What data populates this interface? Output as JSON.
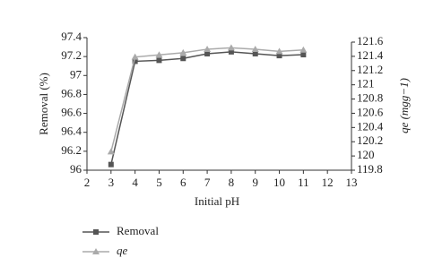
{
  "chart_data": {
    "type": "line",
    "x": [
      3,
      4,
      5,
      6,
      7,
      8,
      9,
      10,
      11
    ],
    "xlabel": "Initial pH",
    "ylabel": "Removal (%)",
    "y2label": "qe (mgg−1)",
    "xlim": [
      2,
      13
    ],
    "xticks": [
      2,
      3,
      4,
      5,
      6,
      7,
      8,
      9,
      10,
      11,
      12,
      13
    ],
    "ylim": [
      96,
      97.4
    ],
    "yticks": [
      96,
      96.2,
      96.4,
      96.6,
      96.8,
      97,
      97.2,
      97.4
    ],
    "y2lim": [
      119.8,
      121.6
    ],
    "y2ticks": [
      119.8,
      120,
      120.2,
      120.4,
      120.6,
      120.8,
      121,
      121.2,
      121.4,
      121.6
    ],
    "series": [
      {
        "name": "Removal",
        "color": "#555555",
        "marker": "square",
        "values": [
          96.06,
          97.15,
          97.16,
          97.18,
          97.23,
          97.25,
          97.23,
          97.21,
          97.22
        ]
      },
      {
        "name": "qe",
        "color": "#aaaaaa",
        "marker": "triangle",
        "axis": "y2",
        "values": [
          120.06,
          121.39,
          121.42,
          121.45,
          121.5,
          121.52,
          121.5,
          121.47,
          121.49
        ]
      }
    ]
  }
}
